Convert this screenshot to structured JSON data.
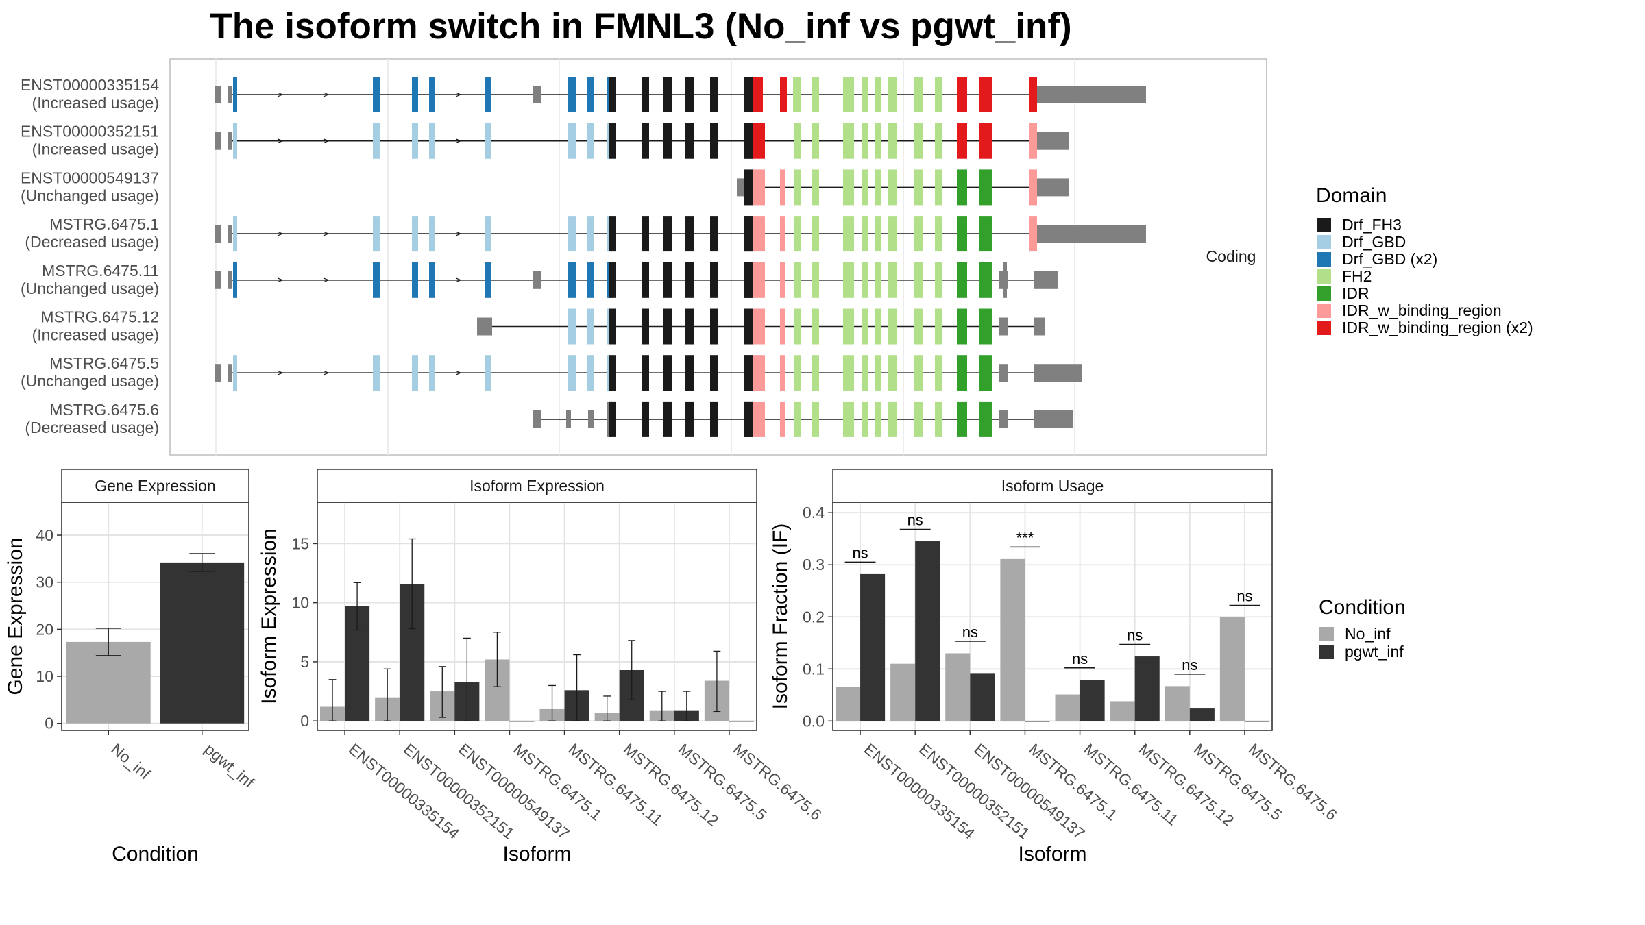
{
  "title": "The isoform switch in FMNL3 (No_inf vs pgwt_inf)",
  "colors": {
    "no_inf": "#a9a9a9",
    "pgwt_inf": "#333333",
    "utr": "#808080",
    "Drf_FH3": "#1a1a1a",
    "Drf_GBD": "#a6cee3",
    "Drf_GBD (x2)": "#1f78b4",
    "FH2": "#b2df8a",
    "IDR": "#33a02c",
    "IDR_w_binding_region": "#fb9a99",
    "IDR_w_binding_region (x2)": "#e31a1c"
  },
  "structure": {
    "facet_label": "Coding",
    "isoforms": [
      {
        "id": "ENST00000335154",
        "usage": "(Increased usage)"
      },
      {
        "id": "ENST00000352151",
        "usage": "(Increased usage)"
      },
      {
        "id": "ENST00000549137",
        "usage": "(Unchanged usage)"
      },
      {
        "id": "MSTRG.6475.1",
        "usage": "(Decreased usage)"
      },
      {
        "id": "MSTRG.6475.11",
        "usage": "(Unchanged usage)"
      },
      {
        "id": "MSTRG.6475.12",
        "usage": "(Increased usage)"
      },
      {
        "id": "MSTRG.6475.5",
        "usage": "(Unchanged usage)"
      },
      {
        "id": "MSTRG.6475.6",
        "usage": "(Decreased usage)"
      }
    ],
    "legend_title": "Domain",
    "legend": [
      "Drf_FH3",
      "Drf_GBD",
      "Drf_GBD (x2)",
      "FH2",
      "IDR",
      "IDR_w_binding_region",
      "IDR_w_binding_region (x2)"
    ]
  },
  "chart_data": [
    {
      "type": "bar",
      "panel": "Gene Expression",
      "categories": [
        "No_inf",
        "pgwt_inf"
      ],
      "values": [
        17.3,
        34.2
      ],
      "errors": [
        [
          14.4,
          20.2
        ],
        [
          32.3,
          36.1
        ]
      ],
      "xlabel": "Condition",
      "ylabel": "Gene Expression",
      "ylim": [
        -1.5,
        47
      ],
      "yticks": [
        0,
        10,
        20,
        30,
        40
      ]
    },
    {
      "type": "bar",
      "panel": "Isoform Expression",
      "categories": [
        "ENST00000335154",
        "ENST00000352151",
        "ENST00000549137",
        "MSTRG.6475.1",
        "MSTRG.6475.11",
        "MSTRG.6475.12",
        "MSTRG.6475.5",
        "MSTRG.6475.6"
      ],
      "series": [
        {
          "name": "No_inf",
          "values": [
            1.2,
            2.0,
            2.5,
            5.2,
            1.0,
            0.7,
            0.9,
            3.4
          ],
          "errors": [
            [
              0,
              3.5
            ],
            [
              0,
              4.4
            ],
            [
              0.3,
              4.6
            ],
            [
              2.9,
              7.5
            ],
            [
              0,
              3.0
            ],
            [
              0,
              2.1
            ],
            [
              0,
              2.5
            ],
            [
              0.8,
              5.9
            ]
          ]
        },
        {
          "name": "pgwt_inf",
          "values": [
            9.7,
            11.6,
            3.3,
            0,
            2.6,
            4.3,
            0.9,
            0
          ],
          "errors": [
            [
              7.7,
              11.7
            ],
            [
              7.8,
              15.4
            ],
            [
              0,
              7.0
            ],
            [
              0,
              0
            ],
            [
              0,
              5.6
            ],
            [
              1.8,
              6.8
            ],
            [
              0,
              2.5
            ],
            [
              0,
              0
            ]
          ]
        }
      ],
      "xlabel": "Isoform",
      "ylabel": "Isoform Expression",
      "ylim": [
        -0.8,
        18.5
      ],
      "yticks": [
        0,
        5,
        10,
        15
      ]
    },
    {
      "type": "bar",
      "panel": "Isoform Usage",
      "categories": [
        "ENST00000335154",
        "ENST00000352151",
        "ENST00000549137",
        "MSTRG.6475.1",
        "MSTRG.6475.11",
        "MSTRG.6475.12",
        "MSTRG.6475.5",
        "MSTRG.6475.6"
      ],
      "series": [
        {
          "name": "No_inf",
          "values": [
            0.066,
            0.11,
            0.13,
            0.311,
            0.051,
            0.038,
            0.067,
            0.199
          ]
        },
        {
          "name": "pgwt_inf",
          "values": [
            0.282,
            0.345,
            0.092,
            0,
            0.079,
            0.124,
            0.024,
            0
          ]
        }
      ],
      "significance": [
        "ns",
        "ns",
        "ns",
        "***",
        "ns",
        "ns",
        "ns",
        "ns"
      ],
      "xlabel": "Isoform",
      "ylabel": "Isoform Fraction (IF)",
      "ylim": [
        -0.018,
        0.42
      ],
      "yticks": [
        0.0,
        0.1,
        0.2,
        0.3,
        0.4
      ],
      "legend_title": "Condition",
      "legend": [
        "No_inf",
        "pgwt_inf"
      ]
    }
  ]
}
